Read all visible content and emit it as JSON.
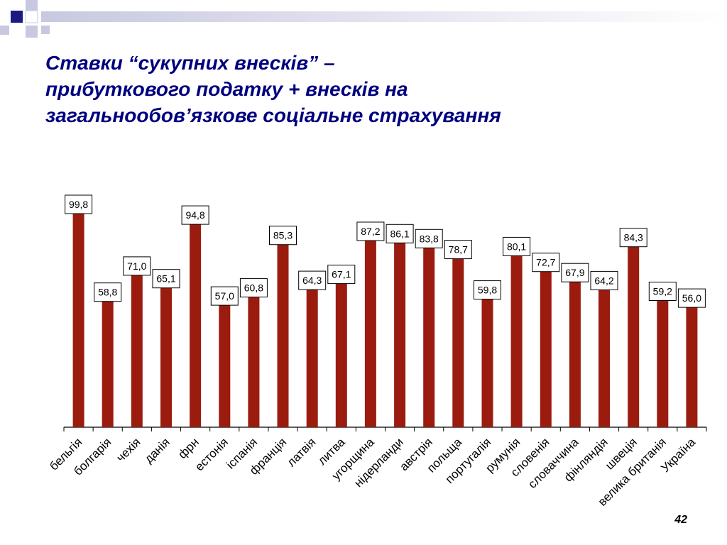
{
  "title": {
    "line1": "Ставки “сукупних внесків” –",
    "line2": "прибуткового податку + внесків на",
    "line3": "загальнообов’язкове соціальне страхування"
  },
  "page_number": "42",
  "colors": {
    "bar": "#9B1C0F",
    "title": "#000080",
    "deco_dark": "#1a1a80",
    "deco_light": "#c8c8e0"
  },
  "chart_data": {
    "type": "bar",
    "categories": [
      "бельгія",
      "болгарія",
      "чехія",
      "данія",
      "фрн",
      "естонія",
      "іспанія",
      "франція",
      "латвія",
      "литва",
      "угорщина",
      "нідерланди",
      "австрія",
      "польща",
      "португалія",
      "румунія",
      "словенія",
      "словаччина",
      "фінляндія",
      "швеція",
      "велика британія",
      "Україна"
    ],
    "values": [
      99.8,
      58.8,
      71.0,
      65.1,
      94.8,
      57.0,
      60.8,
      85.3,
      64.3,
      67.1,
      87.2,
      86.1,
      83.8,
      78.7,
      59.8,
      80.1,
      72.7,
      67.9,
      64.2,
      84.3,
      59.2,
      56.0
    ],
    "value_labels": [
      "99,8",
      "58,8",
      "71,0",
      "65,1",
      "94,8",
      "57,0",
      "60,8",
      "85,3",
      "64,3",
      "67,1",
      "87,2",
      "86,1",
      "83,8",
      "78,7",
      "59,8",
      "80,1",
      "72,7",
      "67,9",
      "64,2",
      "84,3",
      "59,2",
      "56,0"
    ],
    "title": "",
    "xlabel": "",
    "ylabel": "",
    "grid": false,
    "legend": "none"
  }
}
